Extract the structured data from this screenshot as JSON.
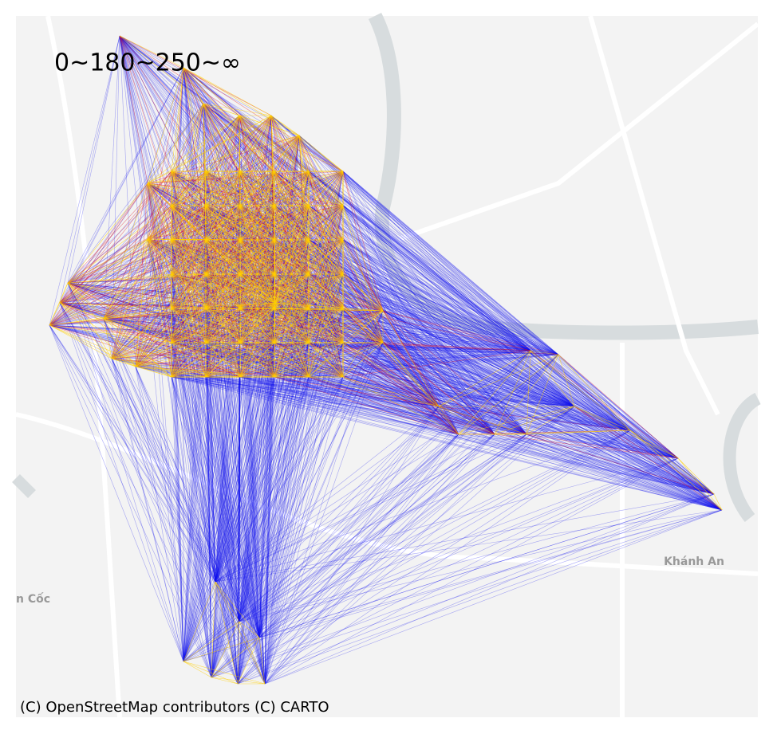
{
  "map": {
    "legend_text": "0~180~250~∞",
    "attribution": "(C) OpenStreetMap contributors (C) CARTO",
    "place_labels": [
      "Khánh An",
      "n Cốc"
    ]
  }
}
